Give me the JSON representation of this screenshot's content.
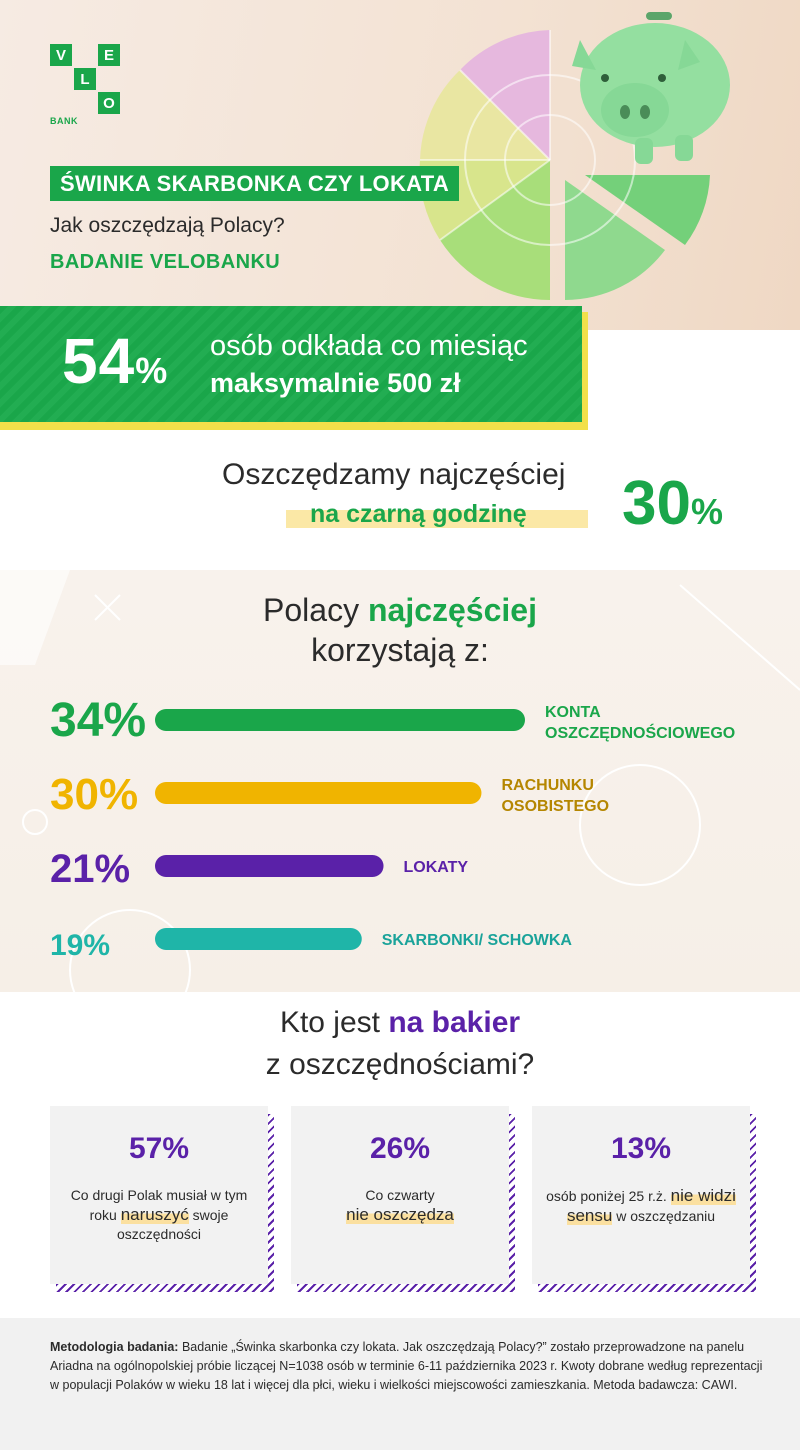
{
  "logo": {
    "letters": [
      "V",
      "E",
      "L",
      "O"
    ],
    "bank": "BANK"
  },
  "hero": {
    "title": "ŚWINKA SKARBONKA CZY LOKATA",
    "subtitle": "Jak oszczędzają Polacy?",
    "study": "BADANIE VELOBANKU",
    "art": [
      "piggy-bank-icon",
      "stacked-blocks-pie"
    ]
  },
  "banner": {
    "value": "54",
    "unit": "%",
    "line1": "osób odkłada co miesiąc",
    "line2": "maksymalnie 500 zł"
  },
  "savings": {
    "line1": "Oszczędzamy najczęściej",
    "line2": "na czarną godzinę",
    "value": "30",
    "unit": "%"
  },
  "chart_data": {
    "type": "bar",
    "orientation": "horizontal",
    "title_pre": "Polacy ",
    "title_highlight": "najczęściej",
    "title_line2": "korzystają z:",
    "categories": [
      "KONTA OSZCZĘDNOŚCIOWEGO",
      "RACHUNKU OSOBISTEGO",
      "LOKATY",
      "SKARBONKI/ SCHOWKA"
    ],
    "label_lines": [
      [
        "KONTA",
        "OSZCZĘDNOŚCIOWEGO"
      ],
      [
        "RACHUNKU",
        "OSOBISTEGO"
      ],
      [
        "LOKATY"
      ],
      [
        "SKARBONKI/ SCHOWKA"
      ]
    ],
    "values": [
      34,
      30,
      21,
      19
    ],
    "value_labels": [
      "34%",
      "30%",
      "21%",
      "19%"
    ],
    "colors": [
      "#1aa64a",
      "#f0b400",
      "#5a21a8",
      "#1fb5a8"
    ],
    "label_colors": [
      "#1aa64a",
      "#b58600",
      "#5a21a8",
      "#1aa39a"
    ],
    "xlim": [
      0,
      34
    ]
  },
  "bakier": {
    "title_pre": "Kto jest ",
    "title_highlight": "na bakier",
    "title_line2": "z oszczędnościami?",
    "cards": [
      {
        "value": "57%",
        "pre": "Co drugi Polak musiał w tym roku ",
        "highlight": "naruszyć",
        "post": " swoje oszczędności"
      },
      {
        "value": "26%",
        "pre": "Co czwarty ",
        "highlight": "nie oszczędza",
        "post": ""
      },
      {
        "value": "13%",
        "pre": "osób poniżej 25 r.ż. ",
        "highlight": "nie widzi sensu",
        "post": " w oszczędzaniu"
      }
    ]
  },
  "methodology": {
    "label": "Metodologia badania:",
    "text": " Badanie „Świnka skarbonka czy lokata. Jak oszczędzają Polacy?” zostało przeprowadzone na panelu Ariadna na ogólnopolskiej próbie liczącej N=1038 osób w terminie 6-11 października 2023 r. Kwoty dobrane według reprezentacji w populacji Polaków w wieku 18 lat i więcej dla płci, wieku i wielkości miejscowości zamieszkania. Metoda badawcza: CAWI."
  },
  "colors": {
    "green": "#1aa64a",
    "yellow": "#f0b400",
    "purple": "#5a21a8",
    "teal": "#1fb5a8",
    "banner_shadow": "#f2e04a"
  }
}
